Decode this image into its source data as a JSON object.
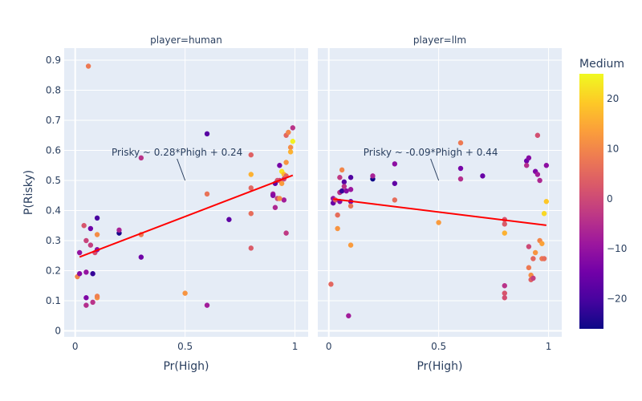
{
  "chart_data": {
    "type": "scatter",
    "ylabel": "P(Risky)",
    "color_label": "Medium",
    "colorscale": [
      "#0d0887",
      "#46039f",
      "#7201a8",
      "#9c179e",
      "#bd3786",
      "#d8576b",
      "#ed7953",
      "#fb9f3a",
      "#fdca26",
      "#f0f921"
    ],
    "color_range": [
      -26,
      25
    ],
    "color_ticks": [
      -20,
      -10,
      0,
      10,
      20
    ],
    "y_ticks": [
      0,
      0.1,
      0.2,
      0.3,
      0.4,
      0.5,
      0.6,
      0.7,
      0.8,
      0.9
    ],
    "y_range": [
      -0.02,
      0.94
    ],
    "x_ticks": [
      0,
      0.5,
      1
    ],
    "x_range": [
      -0.05,
      1.06
    ],
    "line_color": "#ff0000",
    "panels": [
      {
        "title": "player=human",
        "xlabel": "Pr(High)",
        "annotation": "Prisky ~ 0.28*Phigh + 0.24",
        "annotation_anchor": [
          0.5,
          0.5
        ],
        "fit": {
          "slope": 0.28,
          "intercept": 0.24,
          "x": [
            0.02,
            0.99
          ]
        },
        "points": [
          [
            0.06,
            0.88,
            8
          ],
          [
            0.01,
            0.18,
            10
          ],
          [
            0.02,
            0.26,
            -10
          ],
          [
            0.02,
            0.19,
            -12
          ],
          [
            0.04,
            0.35,
            2
          ],
          [
            0.05,
            0.11,
            -13
          ],
          [
            0.05,
            0.085,
            -5
          ],
          [
            0.05,
            0.195,
            -10
          ],
          [
            0.05,
            0.3,
            -1
          ],
          [
            0.07,
            0.34,
            -15
          ],
          [
            0.07,
            0.285,
            -2
          ],
          [
            0.08,
            0.19,
            -22
          ],
          [
            0.08,
            0.095,
            -4
          ],
          [
            0.09,
            0.26,
            1
          ],
          [
            0.1,
            0.27,
            -11
          ],
          [
            0.1,
            0.11,
            12
          ],
          [
            0.1,
            0.115,
            9
          ],
          [
            0.1,
            0.32,
            11
          ],
          [
            0.1,
            0.375,
            -20
          ],
          [
            0.2,
            0.325,
            -25
          ],
          [
            0.2,
            0.335,
            -7
          ],
          [
            0.3,
            0.245,
            -15
          ],
          [
            0.3,
            0.32,
            8
          ],
          [
            0.3,
            0.575,
            -4
          ],
          [
            0.5,
            0.125,
            12
          ],
          [
            0.6,
            0.655,
            -18
          ],
          [
            0.6,
            0.455,
            7
          ],
          [
            0.6,
            0.085,
            -8
          ],
          [
            0.7,
            0.37,
            -17
          ],
          [
            0.8,
            0.275,
            3
          ],
          [
            0.8,
            0.39,
            6
          ],
          [
            0.8,
            0.475,
            5
          ],
          [
            0.8,
            0.52,
            16
          ],
          [
            0.8,
            0.585,
            4
          ],
          [
            0.9,
            0.455,
            -8
          ],
          [
            0.9,
            0.45,
            -12
          ],
          [
            0.91,
            0.41,
            -6
          ],
          [
            0.92,
            0.44,
            0
          ],
          [
            0.93,
            0.5,
            -2
          ],
          [
            0.93,
            0.55,
            -14
          ],
          [
            0.94,
            0.53,
            22
          ],
          [
            0.95,
            0.52,
            17
          ],
          [
            0.95,
            0.505,
            -1
          ],
          [
            0.96,
            0.65,
            5
          ],
          [
            0.96,
            0.56,
            12
          ],
          [
            0.96,
            0.325,
            -3
          ],
          [
            0.97,
            0.66,
            10
          ],
          [
            0.98,
            0.61,
            11
          ],
          [
            0.99,
            0.675,
            -4
          ],
          [
            0.99,
            0.63,
            24
          ],
          [
            0.98,
            0.595,
            16
          ],
          [
            0.96,
            0.515,
            5
          ],
          [
            0.95,
            0.435,
            -8
          ],
          [
            0.94,
            0.49,
            13
          ],
          [
            0.92,
            0.5,
            2
          ],
          [
            0.91,
            0.49,
            -17
          ],
          [
            0.93,
            0.44,
            11
          ]
        ]
      },
      {
        "title": "player=llm",
        "xlabel": "Pr(High)",
        "annotation": "Prisky ~ -0.09*Phigh + 0.44",
        "annotation_anchor": [
          0.5,
          0.5
        ],
        "fit": {
          "slope": -0.09,
          "intercept": 0.44,
          "x": [
            0.02,
            0.99
          ]
        },
        "points": [
          [
            0.01,
            0.155,
            5
          ],
          [
            0.02,
            0.425,
            -16
          ],
          [
            0.02,
            0.44,
            -10
          ],
          [
            0.03,
            0.435,
            3
          ],
          [
            0.04,
            0.34,
            12
          ],
          [
            0.04,
            0.385,
            6
          ],
          [
            0.05,
            0.46,
            -5
          ],
          [
            0.05,
            0.43,
            -12
          ],
          [
            0.05,
            0.51,
            -3
          ],
          [
            0.06,
            0.465,
            -22
          ],
          [
            0.06,
            0.535,
            10
          ],
          [
            0.07,
            0.495,
            -18
          ],
          [
            0.07,
            0.48,
            -4
          ],
          [
            0.08,
            0.465,
            -12
          ],
          [
            0.09,
            0.05,
            -8
          ],
          [
            0.1,
            0.51,
            -19
          ],
          [
            0.1,
            0.47,
            -9
          ],
          [
            0.1,
            0.43,
            -14
          ],
          [
            0.1,
            0.415,
            7
          ],
          [
            0.1,
            0.285,
            13
          ],
          [
            0.2,
            0.505,
            -26
          ],
          [
            0.2,
            0.515,
            -7
          ],
          [
            0.3,
            0.555,
            -11
          ],
          [
            0.3,
            0.49,
            -17
          ],
          [
            0.3,
            0.435,
            6
          ],
          [
            0.5,
            0.36,
            13
          ],
          [
            0.6,
            0.625,
            8
          ],
          [
            0.6,
            0.54,
            -14
          ],
          [
            0.6,
            0.505,
            -5
          ],
          [
            0.7,
            0.515,
            -16
          ],
          [
            0.8,
            0.37,
            2
          ],
          [
            0.8,
            0.355,
            3
          ],
          [
            0.8,
            0.325,
            16
          ],
          [
            0.8,
            0.15,
            -4
          ],
          [
            0.8,
            0.125,
            2
          ],
          [
            0.8,
            0.11,
            1
          ],
          [
            0.9,
            0.565,
            -15
          ],
          [
            0.9,
            0.55,
            -5
          ],
          [
            0.91,
            0.575,
            -12
          ],
          [
            0.91,
            0.28,
            0
          ],
          [
            0.91,
            0.21,
            8
          ],
          [
            0.92,
            0.185,
            11
          ],
          [
            0.92,
            0.17,
            4
          ],
          [
            0.93,
            0.24,
            5
          ],
          [
            0.93,
            0.175,
            -2
          ],
          [
            0.94,
            0.26,
            12
          ],
          [
            0.94,
            0.53,
            -13
          ],
          [
            0.95,
            0.52,
            -8
          ],
          [
            0.95,
            0.65,
            1
          ],
          [
            0.96,
            0.5,
            -6
          ],
          [
            0.96,
            0.3,
            10
          ],
          [
            0.97,
            0.24,
            8
          ],
          [
            0.97,
            0.29,
            14
          ],
          [
            0.98,
            0.24,
            6
          ],
          [
            0.98,
            0.39,
            21
          ],
          [
            0.99,
            0.55,
            -11
          ],
          [
            0.99,
            0.43,
            19
          ]
        ]
      }
    ]
  }
}
